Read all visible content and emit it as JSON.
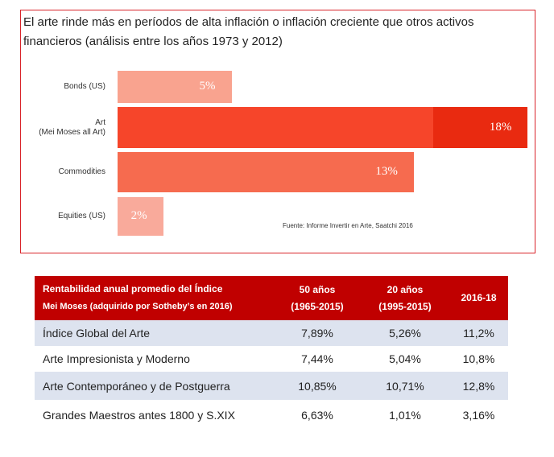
{
  "chart_data": {
    "type": "bar",
    "title": "El arte rinde más en períodos de alta inflación o inflación creciente que otros activos financieros (análisis entre los años 1973 y 2012)",
    "categories": [
      "Bonds (US)",
      "Art\n(Mei Moses all Art)",
      "Commodities",
      "Equities (US)"
    ],
    "values": [
      5,
      18,
      13,
      2
    ],
    "value_labels": [
      "5%",
      "18%",
      "13%",
      "2%"
    ],
    "colors": [
      "#f9a38f",
      "#f6452a",
      "#f66b4f",
      "#f9aa9b"
    ],
    "source": "Fuente: Informe Invertir en Arte, Saatchi 2016"
  },
  "table": {
    "header": [
      [
        "Rentabilidad anual promedio del Índice",
        "Mei Moses (adquirido por Sotheby’s en 2016)"
      ],
      [
        "50 años",
        "(1965-2015)"
      ],
      [
        "20 años",
        "(1995-2015)"
      ],
      [
        "2016-18"
      ]
    ],
    "rows": [
      [
        "Índice Global del Arte",
        "7,89%",
        "5,26%",
        "11,2%"
      ],
      [
        "Arte Impresionista y Moderno",
        "7,44%",
        "5,04%",
        "10,8%"
      ],
      [
        "Arte Contemporáneo y de Postguerra",
        "10,85%",
        "10,71%",
        "12,8%"
      ],
      [
        "Grandes Maestros antes 1800 y S.XIX",
        "6,63%",
        "1,01%",
        "3,16%"
      ]
    ]
  }
}
